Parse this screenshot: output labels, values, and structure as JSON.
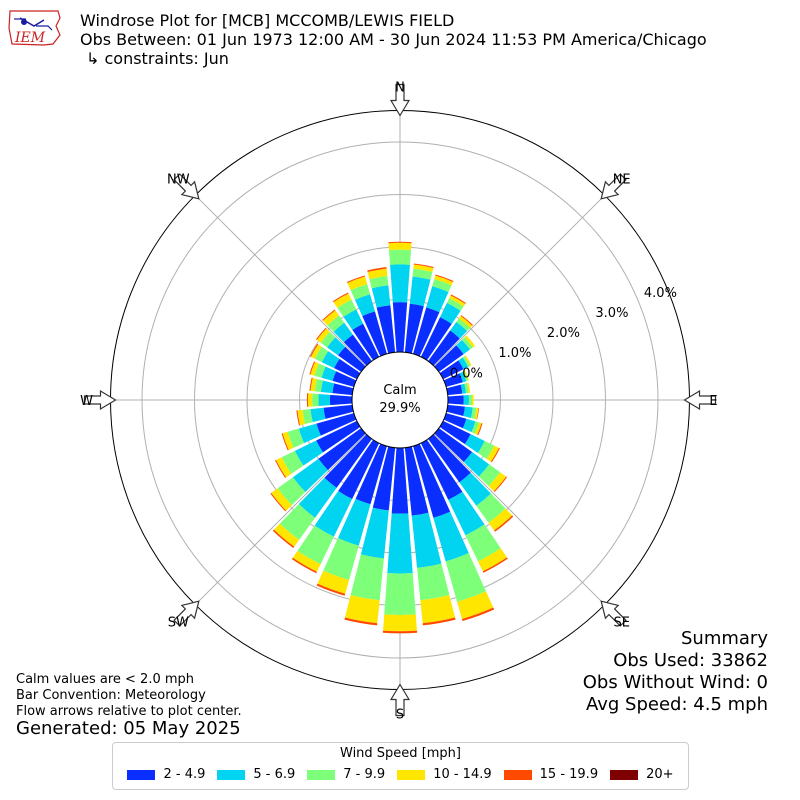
{
  "header": {
    "title_line1": "Windrose Plot for [MCB] MCCOMB/LEWIS FIELD",
    "title_line2": "Obs Between: 01 Jun 1973 12:00 AM - 30 Jun 2024 11:53 PM America/Chicago",
    "title_line3": "↳ constraints: Jun",
    "logo_text": "IEM"
  },
  "notes": {
    "line1": "Calm values are < 2.0 mph",
    "line2": "Bar Convention: Meteorology",
    "line3": "Flow arrows relative to plot center.",
    "generated": "Generated: 05 May 2025"
  },
  "summary": {
    "title": "Summary",
    "obs_used": "Obs Used: 33862",
    "obs_without_wind": "Obs Without Wind: 0",
    "avg_speed": "Avg Speed: 4.5 mph"
  },
  "legend": {
    "title": "Wind Speed [mph]",
    "items": [
      {
        "label": "2 - 4.9",
        "color": "#0a2eff"
      },
      {
        "label": "5 - 6.9",
        "color": "#00d4f0"
      },
      {
        "label": "7 - 9.9",
        "color": "#7dff7a"
      },
      {
        "label": "10 - 14.9",
        "color": "#ffe600"
      },
      {
        "label": "15 - 19.9",
        "color": "#ff4a00"
      },
      {
        "label": "20+",
        "color": "#7f0000"
      }
    ]
  },
  "chart_data": {
    "type": "windrose",
    "calm_label": "Calm",
    "calm_value": "29.9%",
    "radial_ticks": [
      "0.0%",
      "1.0%",
      "2.0%",
      "3.0%",
      "4.0%"
    ],
    "radial_max": 4.6,
    "compass_labels": [
      "N",
      "NE",
      "E",
      "SE",
      "S",
      "SW",
      "W",
      "NW"
    ],
    "direction_count": 36,
    "bins": [
      "2 - 4.9",
      "5 - 6.9",
      "7 - 9.9",
      "10 - 14.9",
      "15 - 19.9",
      "20+"
    ],
    "directions_deg": [
      0,
      10,
      20,
      30,
      40,
      50,
      60,
      70,
      80,
      90,
      100,
      110,
      120,
      130,
      140,
      150,
      160,
      170,
      180,
      190,
      200,
      210,
      220,
      230,
      240,
      250,
      260,
      270,
      280,
      290,
      300,
      310,
      320,
      330,
      340,
      350
    ],
    "values": [
      [
        0.95,
        0.72,
        0.28,
        0.13,
        0.02,
        0.0
      ],
      [
        0.93,
        0.52,
        0.15,
        0.08,
        0.02,
        0.0
      ],
      [
        0.92,
        0.42,
        0.14,
        0.07,
        0.02,
        0.0
      ],
      [
        0.84,
        0.3,
        0.1,
        0.06,
        0.02,
        0.0
      ],
      [
        0.72,
        0.2,
        0.08,
        0.06,
        0.02,
        0.0
      ],
      [
        0.58,
        0.15,
        0.07,
        0.05,
        0.0,
        0.0
      ],
      [
        0.43,
        0.1,
        0.04,
        0.03,
        0.0,
        0.0
      ],
      [
        0.33,
        0.07,
        0.03,
        0.02,
        0.0,
        0.0
      ],
      [
        0.28,
        0.07,
        0.05,
        0.03,
        0.0,
        0.0
      ],
      [
        0.3,
        0.1,
        0.06,
        0.03,
        0.0,
        0.0
      ],
      [
        0.33,
        0.15,
        0.07,
        0.04,
        0.01,
        0.0
      ],
      [
        0.4,
        0.18,
        0.07,
        0.05,
        0.02,
        0.0
      ],
      [
        0.58,
        0.3,
        0.2,
        0.1,
        0.02,
        0.0
      ],
      [
        0.78,
        0.4,
        0.26,
        0.14,
        0.02,
        0.0
      ],
      [
        1.02,
        0.55,
        0.4,
        0.18,
        0.03,
        0.0
      ],
      [
        1.2,
        0.75,
        0.55,
        0.21,
        0.03,
        0.0
      ],
      [
        1.42,
        0.86,
        0.8,
        0.34,
        0.04,
        0.0
      ],
      [
        1.3,
        1.0,
        0.62,
        0.44,
        0.04,
        0.0
      ],
      [
        1.25,
        1.14,
        0.79,
        0.31,
        0.04,
        0.0
      ],
      [
        1.2,
        0.92,
        0.8,
        0.44,
        0.04,
        0.0
      ],
      [
        1.15,
        0.82,
        0.68,
        0.27,
        0.04,
        0.0
      ],
      [
        1.18,
        0.8,
        0.58,
        0.16,
        0.03,
        0.0
      ],
      [
        1.15,
        0.7,
        0.52,
        0.16,
        0.03,
        0.0
      ],
      [
        1.0,
        0.6,
        0.36,
        0.15,
        0.02,
        0.0
      ],
      [
        0.86,
        0.45,
        0.28,
        0.12,
        0.02,
        0.0
      ],
      [
        0.74,
        0.35,
        0.22,
        0.1,
        0.02,
        0.0
      ],
      [
        0.55,
        0.25,
        0.15,
        0.1,
        0.02,
        0.0
      ],
      [
        0.42,
        0.22,
        0.12,
        0.08,
        0.02,
        0.0
      ],
      [
        0.38,
        0.22,
        0.12,
        0.08,
        0.02,
        0.0
      ],
      [
        0.42,
        0.22,
        0.14,
        0.08,
        0.02,
        0.0
      ],
      [
        0.48,
        0.26,
        0.15,
        0.08,
        0.02,
        0.0
      ],
      [
        0.54,
        0.26,
        0.15,
        0.09,
        0.02,
        0.0
      ],
      [
        0.62,
        0.28,
        0.17,
        0.12,
        0.02,
        0.0
      ],
      [
        0.7,
        0.3,
        0.21,
        0.13,
        0.02,
        0.0
      ],
      [
        0.84,
        0.34,
        0.2,
        0.15,
        0.02,
        0.0
      ],
      [
        0.9,
        0.38,
        0.18,
        0.14,
        0.03,
        0.0
      ]
    ]
  }
}
